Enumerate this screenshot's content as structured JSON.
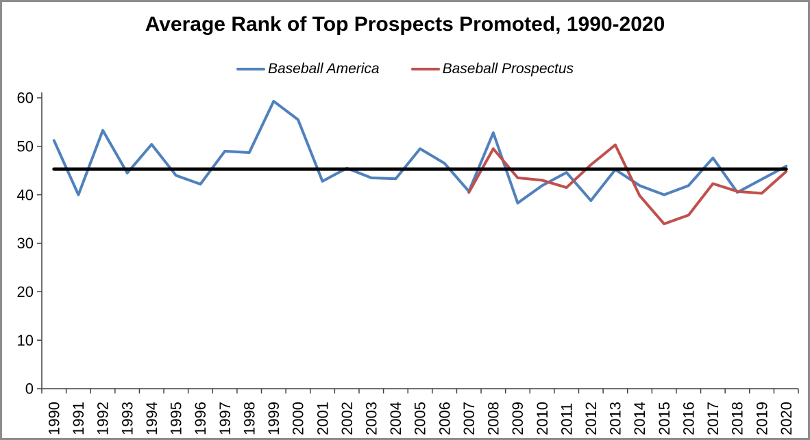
{
  "window": {
    "border_color": "#8C8C8C",
    "background_color": "#FFFFFF"
  },
  "chart_data": {
    "type": "line",
    "title": "Average Rank of Top Prospects Promoted, 1990-2020",
    "xlabel": "",
    "ylabel": "",
    "x": [
      1990,
      1991,
      1992,
      1993,
      1994,
      1995,
      1996,
      1997,
      1998,
      1999,
      2000,
      2001,
      2002,
      2003,
      2004,
      2005,
      2006,
      2007,
      2008,
      2009,
      2010,
      2011,
      2012,
      2013,
      2014,
      2015,
      2016,
      2017,
      2018,
      2019,
      2020
    ],
    "series": [
      {
        "name": "Baseball America",
        "color": "#4F81BD",
        "values": [
          51.2,
          40.0,
          53.3,
          44.5,
          50.4,
          44.0,
          42.2,
          49.0,
          48.7,
          59.3,
          55.5,
          42.8,
          45.5,
          43.5,
          43.3,
          49.5,
          46.5,
          40.7,
          52.8,
          38.3,
          41.9,
          44.6,
          38.8,
          45.2,
          41.9,
          40.0,
          41.9,
          47.6,
          40.5,
          43.2,
          45.9
        ]
      },
      {
        "name": "Baseball Prospectus",
        "color": "#C0504D",
        "values": [
          null,
          null,
          null,
          null,
          null,
          null,
          null,
          null,
          null,
          null,
          null,
          null,
          null,
          null,
          null,
          null,
          null,
          40.5,
          49.5,
          43.5,
          43.0,
          41.5,
          46.2,
          50.3,
          39.8,
          34.0,
          35.8,
          42.3,
          40.7,
          40.3,
          44.8
        ]
      }
    ],
    "reference_line": {
      "value": 45.3,
      "color": "#000000"
    },
    "ylim": [
      0,
      60
    ],
    "ytick_interval": 10,
    "y_tick_labels": [
      "0",
      "10",
      "20",
      "30",
      "40",
      "50",
      "60"
    ],
    "grid": false,
    "legend_position": "top-center",
    "axis_color": "#404040"
  }
}
